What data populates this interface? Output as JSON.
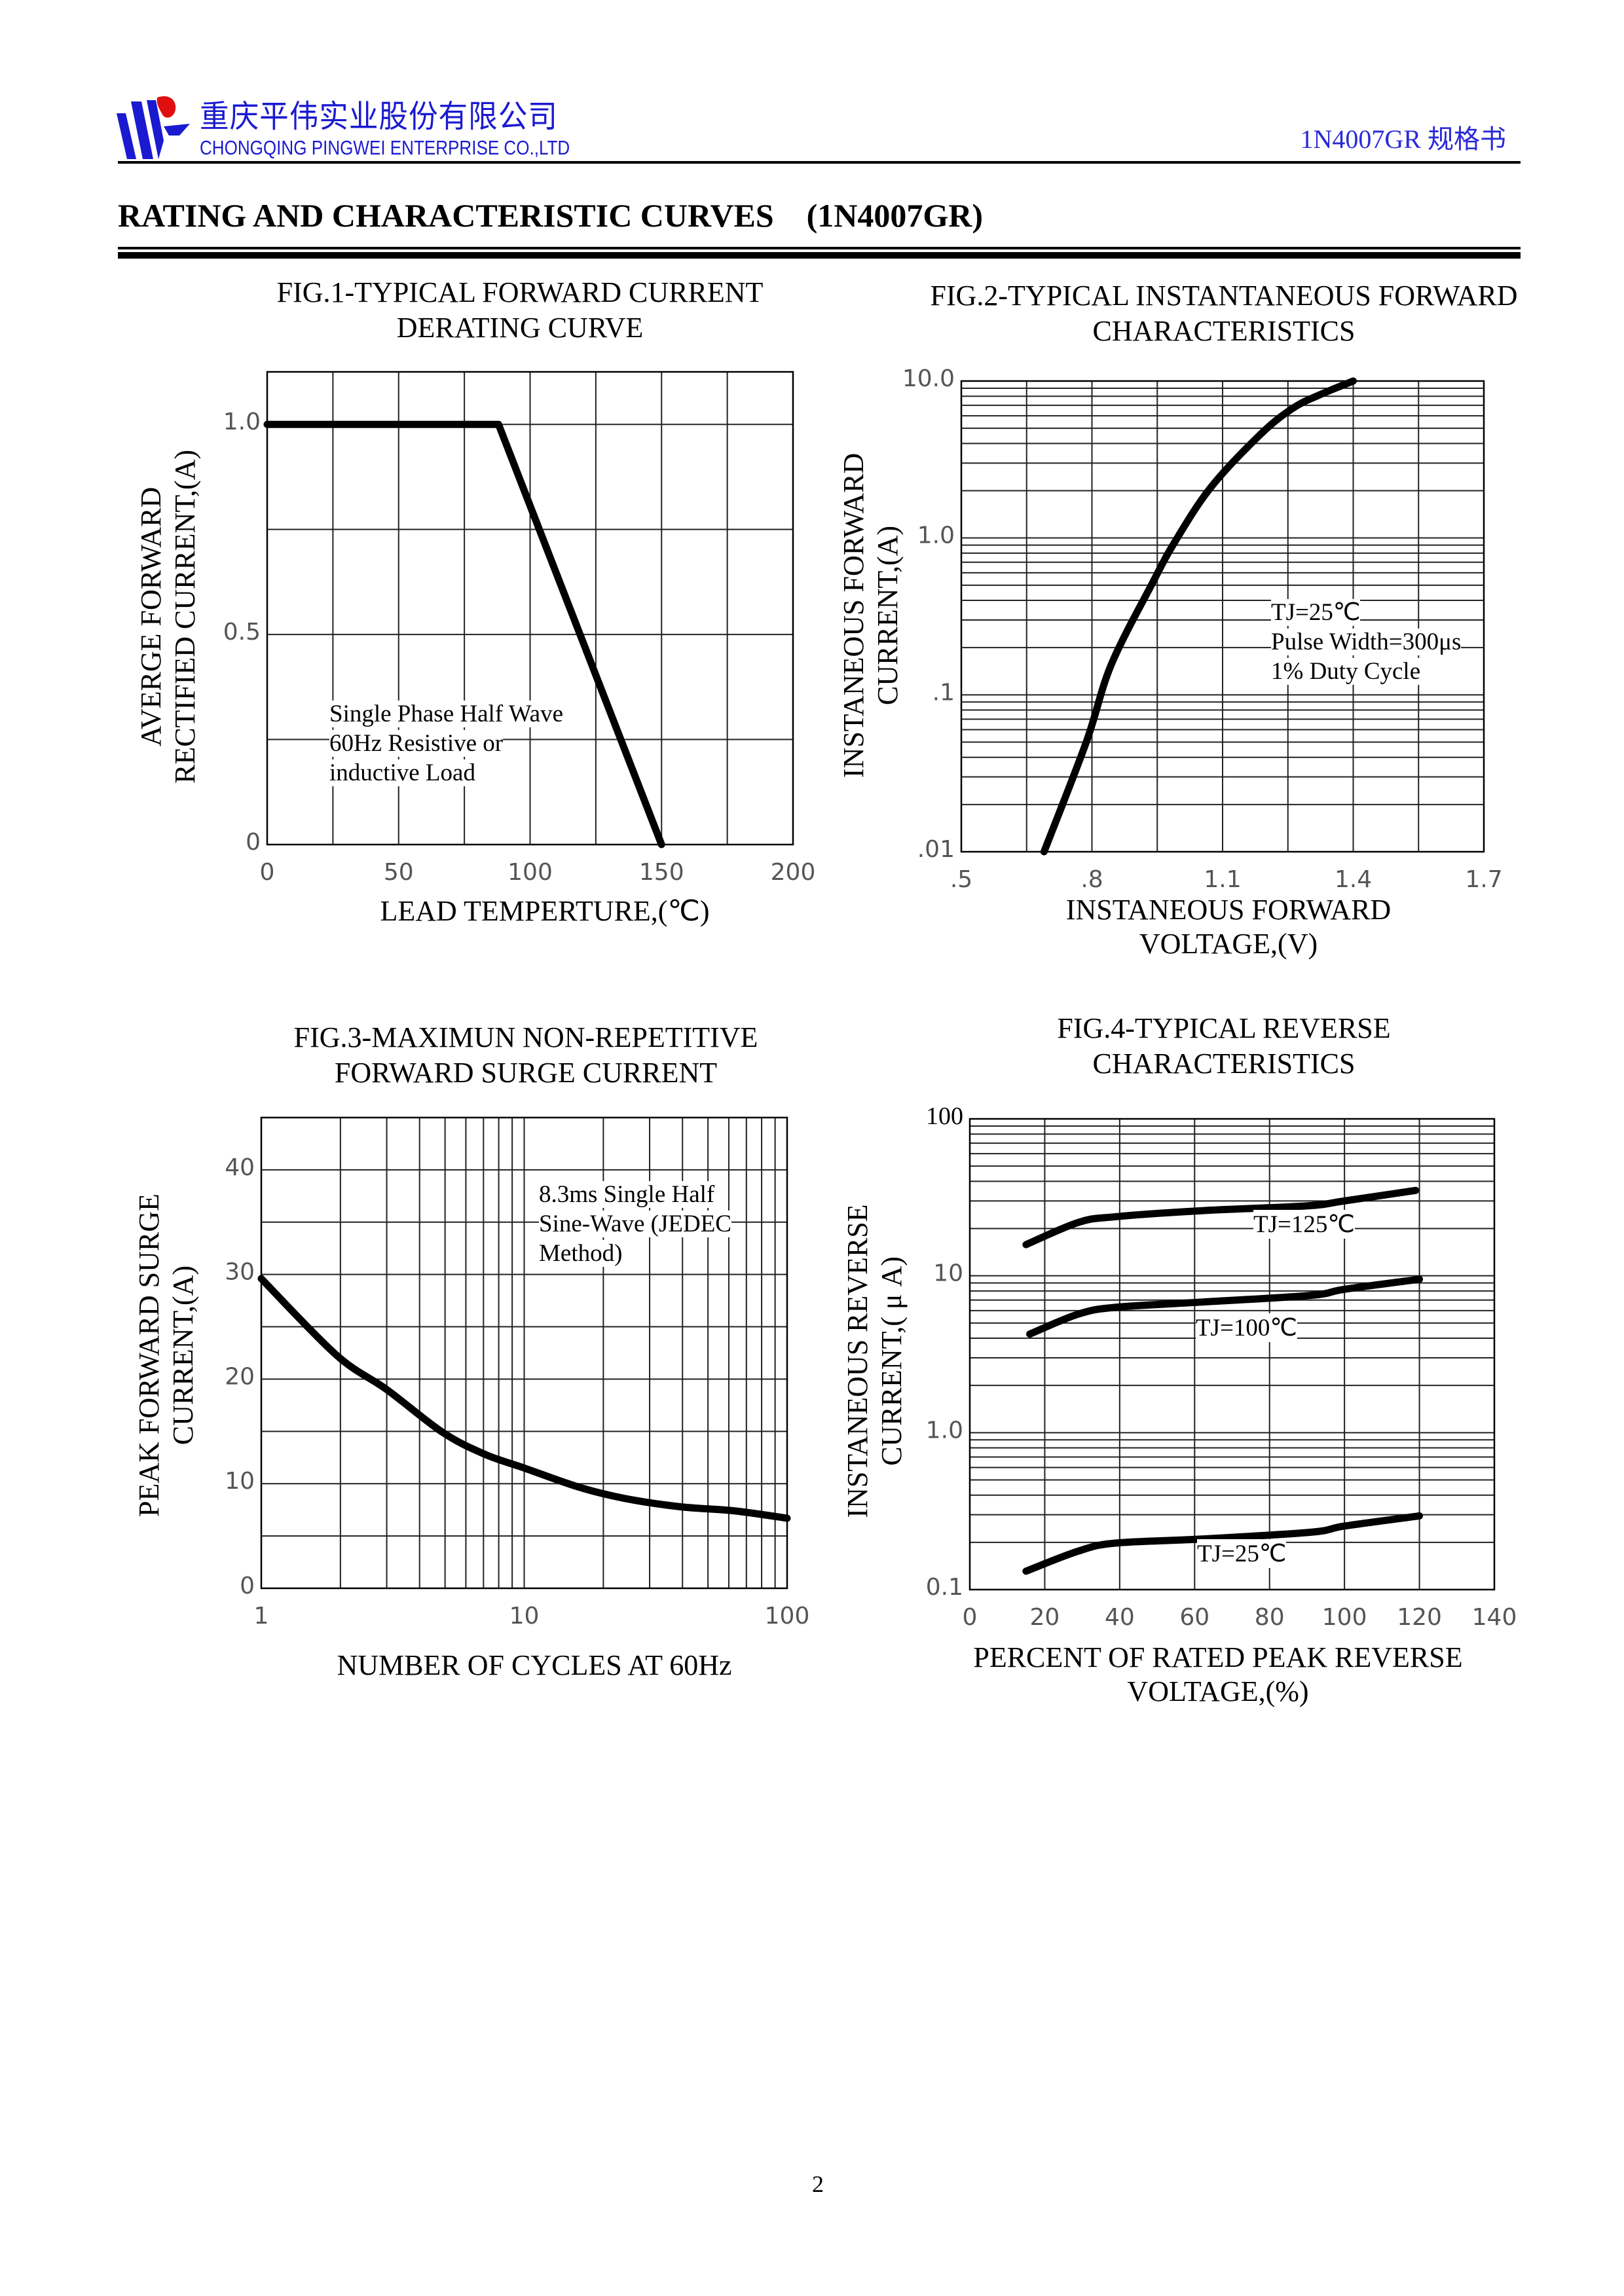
{
  "header": {
    "company_cn": "重庆平伟实业股份有限公司",
    "company_en": "CHONGQING PINGWEI ENTERPRISE CO.,LTD",
    "doc_id": "1N4007GR 规格书",
    "brand_blue": "#1a1ad0",
    "brand_red": "#e01010"
  },
  "section_title": "RATING AND CHARACTERISTIC CURVES    (1N4007GR)",
  "page_number": "2",
  "chart_data": [
    {
      "type": "line",
      "title": "FIG.1-TYPICAL FORWARD CURRENT\nDERATING CURVE",
      "xlabel": "LEAD TEMPERTURE,(℃)",
      "ylabel": "AVERGE FORWARD\nRECTIFIED CURRENT,(A)",
      "xscale": "linear",
      "yscale": "linear",
      "xlim": [
        0,
        200
      ],
      "ylim": [
        0,
        1.125
      ],
      "xgrid": [
        0,
        25,
        50,
        75,
        100,
        125,
        150,
        175,
        200
      ],
      "ygrid": [
        0,
        0.25,
        0.5,
        0.75,
        1.0,
        1.125
      ],
      "xticks": [
        {
          "v": 0,
          "label": "0"
        },
        {
          "v": 50,
          "label": "50"
        },
        {
          "v": 100,
          "label": "100"
        },
        {
          "v": 150,
          "label": "150"
        },
        {
          "v": 200,
          "label": "200"
        }
      ],
      "yticks": [
        {
          "v": 0,
          "label": "0"
        },
        {
          "v": 0.5,
          "label": "0.5"
        },
        {
          "v": 1.0,
          "label": "1.0"
        }
      ],
      "annotation": "Single Phase Half Wave\n60Hz Resistive or\ninductive Load",
      "series": [
        {
          "name": "derating",
          "x": [
            0,
            88,
            150
          ],
          "y": [
            1.0,
            1.0,
            0
          ]
        }
      ],
      "grid": true
    },
    {
      "type": "line",
      "title": "FIG.2-TYPICAL INSTANTANEOUS FORWARD\nCHARACTERISTICS",
      "xlabel": "INSTANEOUS FORWARD\nVOLTAGE,(V)",
      "ylabel": "INSTANEOUS FORWARD\nCURRENT,(A)",
      "xscale": "linear",
      "yscale": "log",
      "xlim": [
        0.5,
        1.7
      ],
      "ylim": [
        0.01,
        10
      ],
      "xgrid": [
        0.5,
        0.65,
        0.8,
        0.95,
        1.1,
        1.25,
        1.4,
        1.55,
        1.7
      ],
      "xticks": [
        {
          "v": 0.5,
          "label": ".5"
        },
        {
          "v": 0.8,
          "label": ".8"
        },
        {
          "v": 1.1,
          "label": "1.1"
        },
        {
          "v": 1.4,
          "label": "1.4"
        },
        {
          "v": 1.7,
          "label": "1.7"
        }
      ],
      "yticks": [
        {
          "v": 0.01,
          "label": ".01"
        },
        {
          "v": 0.1,
          "label": ".1"
        },
        {
          "v": 1,
          "label": "1.0"
        },
        {
          "v": 10,
          "label": "10.0"
        }
      ],
      "annotation": "TJ=25℃\nPulse Width=300μs\n1% Duty Cycle",
      "series": [
        {
          "name": "TJ=25℃",
          "x": [
            0.69,
            0.787,
            0.844,
            0.938,
            0.99,
            1.073,
            1.188,
            1.261,
            1.32,
            1.4
          ],
          "y": [
            0.01,
            0.05,
            0.155,
            0.51,
            0.94,
            2.1,
            4.6,
            6.7,
            8.1,
            10
          ]
        }
      ],
      "grid": true
    },
    {
      "type": "line",
      "title": "FIG.3-MAXIMUN NON-REPETITIVE\nFORWARD SURGE CURRENT",
      "xlabel": "NUMBER OF CYCLES AT 60Hz",
      "ylabel": "PEAK FORWARD SURGE\nCURRENT,(A)",
      "xscale": "log",
      "yscale": "linear",
      "xlim": [
        1,
        100
      ],
      "ylim": [
        0,
        45
      ],
      "ygrid": [
        0,
        5,
        10,
        15,
        20,
        25,
        30,
        35,
        40,
        45
      ],
      "xticks": [
        {
          "v": 1,
          "label": "1"
        },
        {
          "v": 10,
          "label": "10"
        },
        {
          "v": 100,
          "label": "100"
        }
      ],
      "yticks": [
        {
          "v": 0,
          "label": "0"
        },
        {
          "v": 10,
          "label": "10"
        },
        {
          "v": 20,
          "label": "20"
        },
        {
          "v": 30,
          "label": "30"
        },
        {
          "v": 40,
          "label": "40"
        }
      ],
      "annotation": "8.3ms Single Half\nSine-Wave (JEDEC\nMethod)",
      "series": [
        {
          "name": "surge",
          "x": [
            1,
            1.93,
            3,
            4.9,
            7.1,
            10,
            16,
            24,
            39,
            63,
            100
          ],
          "y": [
            29.6,
            22.3,
            19,
            14.9,
            12.8,
            11.5,
            9.7,
            8.6,
            7.8,
            7.4,
            6.7
          ]
        }
      ],
      "grid": true
    },
    {
      "type": "line",
      "title": "FIG.4-TYPICAL REVERSE\nCHARACTERISTICS",
      "xlabel": "PERCENT OF RATED PEAK REVERSE\nVOLTAGE,(%)",
      "ylabel": "INSTANEOUS REVERSE\nCURRENT,( μ A)",
      "xscale": "linear",
      "yscale": "log",
      "xlim": [
        0,
        140
      ],
      "ylim": [
        0.1,
        100
      ],
      "xgrid": [
        0,
        20,
        40,
        60,
        80,
        100,
        120,
        140
      ],
      "xticks": [
        {
          "v": 0,
          "label": "0"
        },
        {
          "v": 20,
          "label": "20"
        },
        {
          "v": 40,
          "label": "40"
        },
        {
          "v": 60,
          "label": "60"
        },
        {
          "v": 80,
          "label": "80"
        },
        {
          "v": 100,
          "label": "100"
        },
        {
          "v": 120,
          "label": "120"
        },
        {
          "v": 140,
          "label": "140"
        }
      ],
      "yticks": [
        {
          "v": 0.1,
          "label": "0.1"
        },
        {
          "v": 1,
          "label": "1.0"
        },
        {
          "v": 10,
          "label": "10"
        },
        {
          "v": 100,
          "label": "100"
        }
      ],
      "series": [
        {
          "name": "TJ=125℃",
          "x": [
            15,
            29,
            39,
            62,
            90,
            100,
            119
          ],
          "y": [
            15.8,
            21.9,
            23.8,
            26,
            27.9,
            30,
            35
          ]
        },
        {
          "name": "TJ=100℃",
          "x": [
            16,
            29,
            39,
            62,
            91,
            100,
            120
          ],
          "y": [
            4.25,
            5.7,
            6.3,
            6.8,
            7.5,
            8.2,
            9.5
          ]
        },
        {
          "name": "TJ=25℃",
          "x": [
            15,
            29,
            39,
            62,
            91,
            100,
            120
          ],
          "y": [
            0.131,
            0.176,
            0.198,
            0.21,
            0.232,
            0.254,
            0.295
          ]
        }
      ],
      "grid": true
    }
  ]
}
